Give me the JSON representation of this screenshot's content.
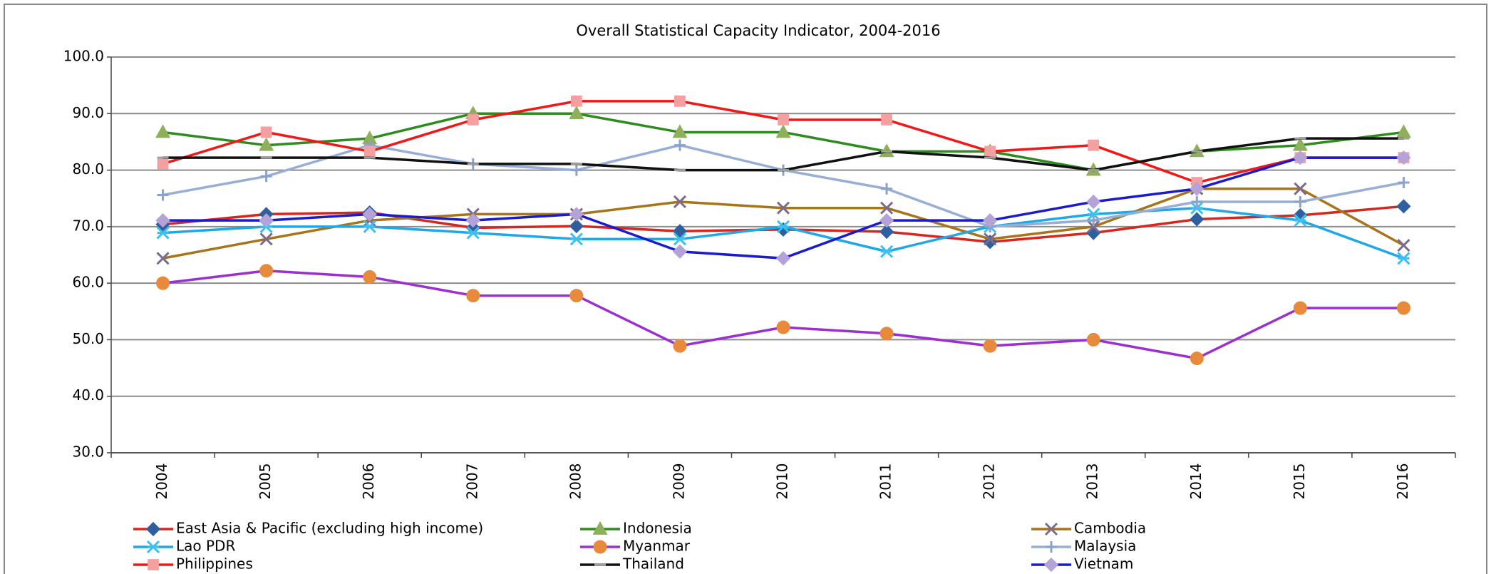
{
  "chart_data": {
    "type": "line",
    "title": "Overall Statistical Capacity Indicator, 2004-2016",
    "categories": [
      "2004",
      "2005",
      "2006",
      "2007",
      "2008",
      "2009",
      "2010",
      "2011",
      "2012",
      "2013",
      "2014",
      "2015",
      "2016"
    ],
    "ylim": [
      30,
      100
    ],
    "yticks": [
      {
        "value": 30,
        "label": "30.0"
      },
      {
        "value": 40,
        "label": "40.0"
      },
      {
        "value": 50,
        "label": "50.0"
      },
      {
        "value": 60,
        "label": "60.0"
      },
      {
        "value": 70,
        "label": "70.0"
      },
      {
        "value": 80,
        "label": "80.0"
      },
      {
        "value": 90,
        "label": "90.0"
      },
      {
        "value": 100,
        "label": "100.0"
      }
    ],
    "grid": true,
    "series": [
      {
        "name": "East Asia & Pacific (excluding high income)",
        "color": "#d7261e",
        "marker": "diamond",
        "marker_color": "#2f5f9e",
        "values": [
          70.4,
          72.2,
          72.5,
          69.8,
          70.1,
          69.2,
          69.5,
          69.1,
          67.3,
          68.9,
          71.3,
          72.0,
          73.6
        ]
      },
      {
        "name": "Indonesia",
        "color": "#2e8b1e",
        "marker": "triangle",
        "marker_color": "#8fb05a",
        "values": [
          86.7,
          84.4,
          85.6,
          90.0,
          90.0,
          86.7,
          86.7,
          83.3,
          83.3,
          80.0,
          83.3,
          84.4,
          86.7
        ]
      },
      {
        "name": "Cambodia",
        "color": "#a8741a",
        "marker": "x",
        "marker_color": "#7a6a8c",
        "values": [
          64.4,
          67.8,
          71.1,
          72.2,
          72.2,
          74.4,
          73.3,
          73.3,
          67.8,
          70.0,
          76.7,
          76.7,
          66.7
        ]
      },
      {
        "name": "Lao PDR",
        "color": "#1fa8e8",
        "marker": "asterisk",
        "marker_color": "#3cc0f0",
        "values": [
          68.9,
          70.0,
          70.0,
          68.9,
          67.8,
          67.8,
          70.0,
          65.6,
          70.0,
          72.2,
          73.3,
          71.1,
          64.4
        ]
      },
      {
        "name": "Myanmar",
        "color": "#9b30d0",
        "marker": "circle",
        "marker_color": "#e88a3c",
        "values": [
          60.0,
          62.2,
          61.1,
          57.8,
          57.8,
          48.9,
          52.2,
          51.1,
          48.9,
          50.0,
          46.7,
          55.6,
          55.6
        ]
      },
      {
        "name": "Malaysia",
        "color": "#97afd6",
        "marker": "plus",
        "marker_color": "#8aa2cc",
        "values": [
          75.6,
          78.9,
          84.4,
          81.1,
          80.0,
          84.4,
          80.0,
          76.7,
          70.0,
          71.1,
          74.4,
          74.4,
          77.8
        ]
      },
      {
        "name": "Philippines",
        "color": "#f01818",
        "marker": "square",
        "marker_color": "#f4a0a0",
        "values": [
          81.1,
          86.7,
          83.3,
          88.9,
          92.2,
          92.2,
          88.9,
          88.9,
          83.3,
          84.4,
          77.8,
          82.2,
          82.2
        ]
      },
      {
        "name": "Thailand",
        "color": "#111111",
        "marker": "dash",
        "marker_color": "#a0a0a0",
        "values": [
          82.2,
          82.2,
          82.2,
          81.1,
          81.1,
          80.0,
          80.0,
          83.3,
          82.2,
          80.0,
          83.3,
          85.6,
          85.6
        ]
      },
      {
        "name": "Vietnam",
        "color": "#1a1ad0",
        "marker": "diamond",
        "marker_color": "#b4a2d8",
        "values": [
          71.1,
          71.1,
          72.2,
          71.1,
          72.2,
          65.6,
          64.4,
          71.1,
          71.1,
          74.4,
          76.7,
          82.2,
          82.2
        ]
      }
    ]
  }
}
